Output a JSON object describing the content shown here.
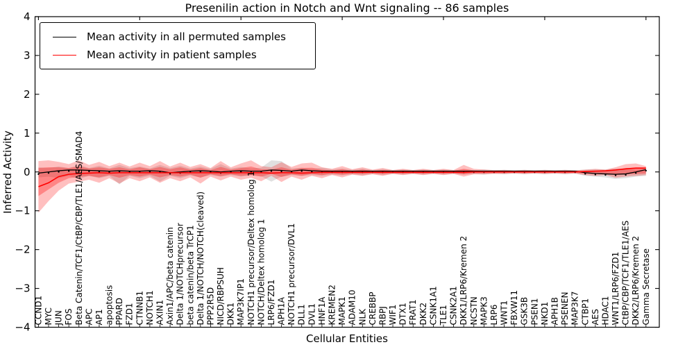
{
  "title": "Presenilin action in Notch and Wnt signaling -- 86 samples",
  "axes": {
    "xlabel": "Cellular Entities",
    "ylabel": "Inferred Activity",
    "yticks": [
      4,
      3,
      2,
      1,
      0,
      -1,
      -2,
      -3,
      -4
    ],
    "ylim": [
      -4,
      4
    ]
  },
  "legend": {
    "items": [
      {
        "label": "Mean activity in all permuted samples",
        "color": "#000000"
      },
      {
        "label": "Mean activity in patient samples",
        "color": "#ff0000"
      }
    ],
    "position": "upper left"
  },
  "colors": {
    "permuted_line": "#000000",
    "patient_line": "#ff0000",
    "permuted_band": "#000000",
    "patient_band": "#ff0000",
    "frame": "#000000"
  },
  "chart_data": {
    "type": "line",
    "title": "Presenilin action in Notch and Wnt signaling -- 86 samples",
    "xlabel": "Cellular Entities",
    "ylabel": "Inferred Activity",
    "ylim": [
      -4,
      4
    ],
    "grid": false,
    "legend_position": "upper left",
    "categories": [
      "CCND1",
      "MYC",
      "JUN",
      "FOS",
      "Beta Catenin/TCF1/CtBP/CBP/TLE1/AES/SMAD4",
      "APC",
      "AP1",
      "apoptosis",
      "PPARD",
      "FZD1",
      "CTNNB1",
      "NOTCH1",
      "AXIN1",
      "Axin1/APC/beta catenin",
      "Delta 1/NOTCHprecursor",
      "beta catenin/beta TrCP1",
      "Delta 1/NOTCH/NOTCH(cleaved)",
      "PPP2R5D",
      "NICD/RBPSUH",
      "DKK1",
      "MAP3K7IP1",
      "NOTCH1 precursor/Deltex homolog 1",
      "NOTCH/Deltex homolog 1",
      "LRP6/FZD1",
      "APH1A",
      "NOTCH1 precursor/DVL1",
      "DLL1",
      "DVL1",
      "HNF1A",
      "KREMEN2",
      "MAPK1",
      "ADAM10",
      "NLK",
      "CREBBP",
      "RBPJ",
      "WIF1",
      "DTX1",
      "FRAT1",
      "DKK2",
      "CSNK1A1",
      "TLE1",
      "CSNK2A1",
      "DKK1/LRP6/Kremen 2",
      "NCSTN",
      "MAPK3",
      "LRP6",
      "WNT1",
      "FBXW11",
      "GSK3B",
      "PSEN1",
      "NKD1",
      "APH1B",
      "PSENEN",
      "MAP3K7",
      "CTBP1",
      "AES",
      "HDAC1",
      "WNT1/LRP6/FZD1",
      "CtBP/CBP/TCF1/TLE1/AES",
      "DKK2/LRP6/Kremen 2",
      "Gamma Secretase"
    ],
    "series": [
      {
        "name": "Mean activity in all permuted samples",
        "color": "#000000",
        "values": [
          -0.03,
          0.0,
          0.03,
          0.05,
          0.05,
          0.04,
          0.03,
          0.02,
          0.03,
          0.02,
          0.02,
          0.03,
          0.02,
          -0.02,
          0.0,
          0.02,
          0.03,
          0.02,
          0.0,
          0.02,
          0.03,
          0.02,
          0.02,
          0.05,
          0.04,
          0.02,
          0.05,
          0.03,
          0.02,
          0.02,
          0.02,
          0.02,
          0.02,
          0.02,
          0.02,
          0.02,
          0.02,
          0.02,
          0.02,
          0.02,
          0.02,
          0.02,
          0.02,
          0.02,
          0.02,
          0.02,
          0.02,
          0.02,
          0.02,
          0.02,
          0.02,
          0.02,
          0.02,
          0.02,
          -0.02,
          -0.04,
          -0.05,
          -0.06,
          -0.05,
          0.0,
          0.06
        ]
      },
      {
        "name": "Mean activity in patient samples",
        "color": "#ff0000",
        "values": [
          -0.38,
          -0.28,
          -0.12,
          -0.06,
          -0.04,
          -0.03,
          -0.02,
          -0.03,
          -0.02,
          -0.02,
          -0.02,
          -0.02,
          -0.02,
          -0.02,
          -0.02,
          -0.02,
          -0.02,
          -0.02,
          -0.02,
          -0.02,
          -0.02,
          -0.02,
          -0.02,
          -0.03,
          -0.02,
          -0.02,
          -0.03,
          -0.02,
          -0.01,
          -0.01,
          -0.01,
          -0.01,
          -0.01,
          -0.01,
          -0.01,
          -0.01,
          -0.01,
          -0.01,
          -0.01,
          -0.01,
          -0.01,
          -0.01,
          -0.01,
          0.0,
          0.0,
          0.0,
          0.0,
          0.0,
          0.0,
          0.0,
          0.0,
          0.0,
          0.0,
          0.0,
          0.01,
          0.02,
          0.03,
          0.05,
          0.08,
          0.1,
          0.1
        ]
      }
    ],
    "bands": [
      {
        "name": "permuted-samples-spread",
        "color": "#000000",
        "alpha": 0.12,
        "upper": [
          0.12,
          0.1,
          0.14,
          0.1,
          0.18,
          0.1,
          0.16,
          0.09,
          0.18,
          0.1,
          0.14,
          0.09,
          0.18,
          0.1,
          0.16,
          0.09,
          0.14,
          0.08,
          0.2,
          0.09,
          0.13,
          0.09,
          0.11,
          0.3,
          0.28,
          0.09,
          0.11,
          0.08,
          0.11,
          0.07,
          0.09,
          0.06,
          0.09,
          0.05,
          0.08,
          0.05,
          0.07,
          0.05,
          0.07,
          0.05,
          0.07,
          0.05,
          0.07,
          0.05,
          0.07,
          0.04,
          0.06,
          0.04,
          0.06,
          0.04,
          0.06,
          0.04,
          0.06,
          0.04,
          0.06,
          0.07,
          0.06,
          0.09,
          0.07,
          0.06,
          0.09
        ],
        "lower": [
          -0.14,
          -0.12,
          -0.16,
          -0.1,
          -0.18,
          -0.1,
          -0.16,
          -0.1,
          -0.32,
          -0.1,
          -0.16,
          -0.1,
          -0.25,
          -0.1,
          -0.16,
          -0.09,
          -0.14,
          -0.08,
          -0.12,
          -0.08,
          -0.12,
          -0.08,
          -0.11,
          -0.25,
          -0.12,
          -0.08,
          -0.1,
          -0.08,
          -0.1,
          -0.07,
          -0.09,
          -0.06,
          -0.09,
          -0.05,
          -0.08,
          -0.05,
          -0.07,
          -0.05,
          -0.07,
          -0.05,
          -0.07,
          -0.05,
          -0.07,
          -0.05,
          -0.07,
          -0.04,
          -0.06,
          -0.04,
          -0.06,
          -0.04,
          -0.06,
          -0.04,
          -0.06,
          -0.04,
          -0.1,
          -0.12,
          -0.14,
          -0.18,
          -0.16,
          -0.12,
          -0.1
        ]
      },
      {
        "name": "patient-samples-spread-outer",
        "color": "#ff0000",
        "alpha": 0.25,
        "upper": [
          0.28,
          0.3,
          0.26,
          0.2,
          0.3,
          0.18,
          0.26,
          0.15,
          0.24,
          0.14,
          0.24,
          0.15,
          0.28,
          0.14,
          0.24,
          0.13,
          0.2,
          0.1,
          0.28,
          0.12,
          0.22,
          0.3,
          0.15,
          0.12,
          0.25,
          0.13,
          0.22,
          0.24,
          0.12,
          0.08,
          0.15,
          0.07,
          0.12,
          0.06,
          0.1,
          0.05,
          0.08,
          0.05,
          0.08,
          0.05,
          0.08,
          0.05,
          0.18,
          0.08,
          0.06,
          0.05,
          0.05,
          0.04,
          0.05,
          0.04,
          0.05,
          0.04,
          0.05,
          0.04,
          0.06,
          0.08,
          0.06,
          0.12,
          0.2,
          0.22,
          0.15
        ],
        "lower": [
          -1.05,
          -0.75,
          -0.48,
          -0.3,
          -0.25,
          -0.2,
          -0.28,
          -0.16,
          -0.3,
          -0.16,
          -0.24,
          -0.14,
          -0.28,
          -0.16,
          -0.24,
          -0.14,
          -0.3,
          -0.12,
          -0.22,
          -0.12,
          -0.2,
          -0.15,
          -0.24,
          -0.1,
          -0.26,
          -0.12,
          -0.2,
          -0.1,
          -0.16,
          -0.08,
          -0.14,
          -0.07,
          -0.1,
          -0.06,
          -0.1,
          -0.05,
          -0.08,
          -0.05,
          -0.08,
          -0.05,
          -0.08,
          -0.05,
          -0.12,
          -0.06,
          -0.06,
          -0.05,
          -0.05,
          -0.04,
          -0.05,
          -0.04,
          -0.05,
          -0.04,
          -0.05,
          -0.04,
          -0.08,
          -0.1,
          -0.08,
          -0.15,
          -0.12,
          -0.1,
          -0.08
        ]
      },
      {
        "name": "patient-samples-spread-inner",
        "color": "#ff0000",
        "alpha": 0.3,
        "upper": [
          0.1,
          0.12,
          0.12,
          0.1,
          0.14,
          0.09,
          0.12,
          0.08,
          0.12,
          0.07,
          0.12,
          0.07,
          0.13,
          0.07,
          0.12,
          0.06,
          0.1,
          0.05,
          0.13,
          0.06,
          0.1,
          0.14,
          0.07,
          0.06,
          0.12,
          0.06,
          0.1,
          0.11,
          0.06,
          0.04,
          0.07,
          0.03,
          0.06,
          0.03,
          0.05,
          0.03,
          0.04,
          0.03,
          0.04,
          0.03,
          0.04,
          0.03,
          0.08,
          0.04,
          0.03,
          0.03,
          0.03,
          0.02,
          0.03,
          0.02,
          0.03,
          0.02,
          0.03,
          0.02,
          0.03,
          0.04,
          0.03,
          0.06,
          0.1,
          0.11,
          0.08
        ],
        "lower": [
          -0.62,
          -0.45,
          -0.28,
          -0.16,
          -0.13,
          -0.1,
          -0.14,
          -0.08,
          -0.15,
          -0.08,
          -0.12,
          -0.07,
          -0.14,
          -0.08,
          -0.12,
          -0.07,
          -0.15,
          -0.06,
          -0.11,
          -0.06,
          -0.1,
          -0.08,
          -0.12,
          -0.05,
          -0.13,
          -0.06,
          -0.1,
          -0.05,
          -0.08,
          -0.04,
          -0.07,
          -0.04,
          -0.05,
          -0.03,
          -0.05,
          -0.03,
          -0.04,
          -0.03,
          -0.04,
          -0.03,
          -0.04,
          -0.03,
          -0.06,
          -0.03,
          -0.03,
          -0.03,
          -0.03,
          -0.02,
          -0.03,
          -0.02,
          -0.03,
          -0.02,
          -0.03,
          -0.02,
          -0.04,
          -0.05,
          -0.04,
          -0.08,
          -0.06,
          -0.05,
          -0.04
        ]
      }
    ]
  }
}
